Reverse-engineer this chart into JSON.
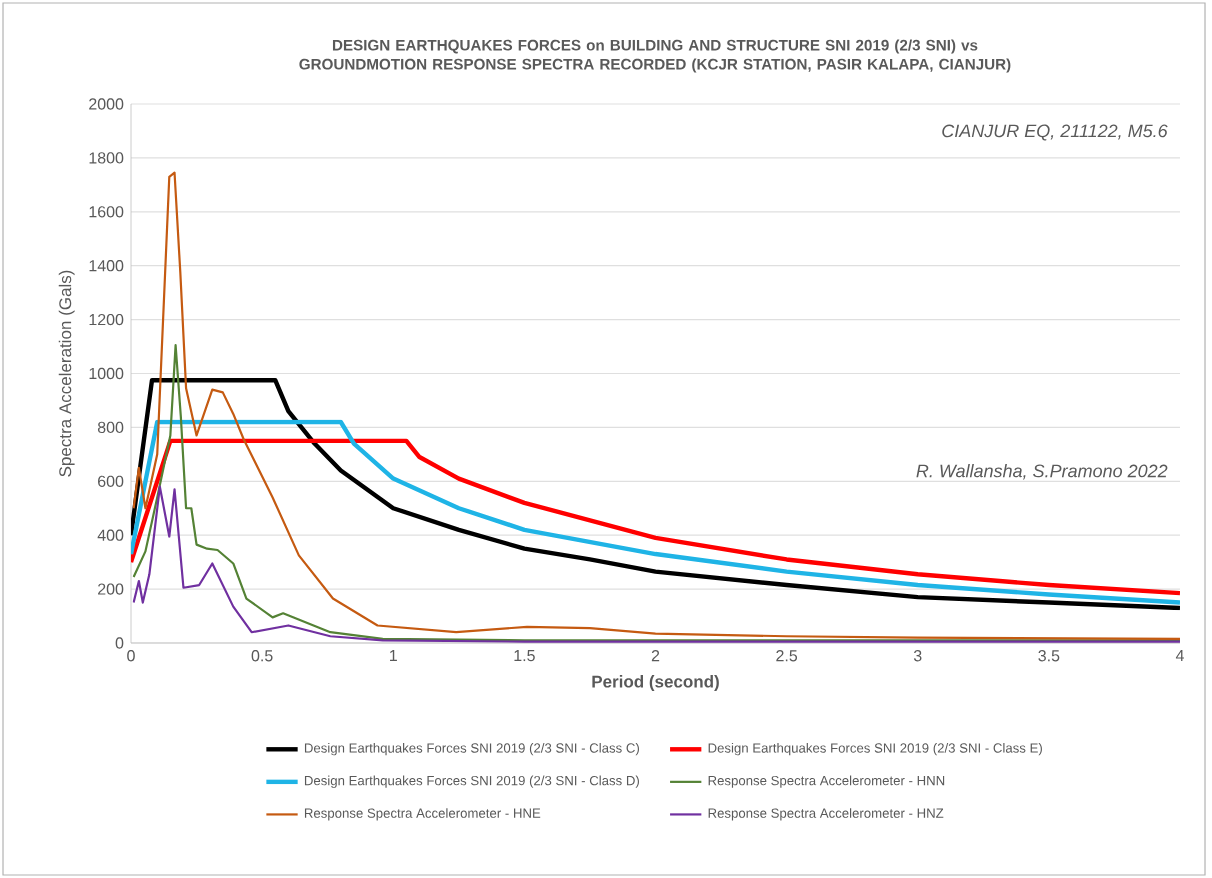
{
  "chart_data": {
    "type": "line",
    "title": "DESIGN EARTHQUAKES FORCES on BUILDING AND STRUCTURE SNI 2019 (2/3 SNI) vs\nGROUNDMOTION RESPONSE SPECTRA RECORDED (KCJR STATION, PASIR KALAPA, CIANJUR)",
    "xlabel": "Period (second)",
    "ylabel": "Spectra Acceleration (Gals)",
    "xlim": [
      0,
      4
    ],
    "xticks": [
      0,
      0.5,
      1,
      1.5,
      2,
      2.5,
      3,
      3.5,
      4
    ],
    "ylim": [
      0,
      2000
    ],
    "yticks": [
      0,
      200,
      400,
      600,
      800,
      1000,
      1200,
      1400,
      1600,
      1800,
      2000
    ],
    "grid": "y",
    "legend": "bottom",
    "annotations": [
      "CIANJUR EQ, 211122, M5.6",
      "R. Wallansha, S.Pramono 2022"
    ],
    "series": [
      {
        "name": "Design Earthquakes Forces SNI 2019 (2/3 SNI - Class C)",
        "color": "#000000",
        "x": [
          0,
          0.08,
          0.55,
          0.6,
          0.7,
          0.8,
          1,
          1.25,
          1.5,
          1.75,
          2,
          2.5,
          3,
          3.5,
          4
        ],
        "values": [
          400,
          975,
          975,
          860,
          740,
          640,
          500,
          420,
          350,
          310,
          265,
          215,
          170,
          150,
          130
        ]
      },
      {
        "name": "Design Earthquakes Forces SNI 2019 (2/3 SNI - Class E)",
        "color": "#ff0000",
        "x": [
          0,
          0.15,
          1.05,
          1.1,
          1.25,
          1.5,
          2,
          2.5,
          3,
          3.5,
          4
        ],
        "values": [
          300,
          750,
          750,
          690,
          610,
          520,
          390,
          310,
          255,
          215,
          185
        ]
      },
      {
        "name": "Design Earthquakes Forces SNI 2019 (2/3 SNI - Class D)",
        "color": "#1fb4e6",
        "x": [
          0,
          0.1,
          0.8,
          0.85,
          1,
          1.25,
          1.5,
          2,
          2.5,
          3,
          3.5,
          4
        ],
        "values": [
          330,
          820,
          820,
          740,
          610,
          500,
          420,
          330,
          265,
          215,
          180,
          150
        ]
      },
      {
        "name": "Response Spectra Accelerometer - HNN",
        "color": "#548235",
        "x": [
          0.01,
          0.055,
          0.1,
          0.15,
          0.17,
          0.19,
          0.21,
          0.23,
          0.25,
          0.29,
          0.33,
          0.39,
          0.44,
          0.54,
          0.58,
          0.76,
          0.96,
          1.5,
          2,
          3,
          4
        ],
        "values": [
          245,
          340,
          540,
          770,
          1105,
          840,
          500,
          500,
          365,
          350,
          345,
          295,
          165,
          95,
          110,
          40,
          15,
          10,
          10,
          10,
          10
        ]
      },
      {
        "name": "Response Spectra Accelerometer - HNE",
        "color": "#c55a11",
        "x": [
          0.01,
          0.03,
          0.055,
          0.1,
          0.146,
          0.166,
          0.188,
          0.21,
          0.25,
          0.31,
          0.35,
          0.39,
          0.43,
          0.54,
          0.64,
          0.77,
          0.94,
          1.24,
          1.51,
          1.75,
          2,
          2.5,
          3,
          4
        ],
        "values": [
          500,
          650,
          500,
          700,
          1730,
          1745,
          1375,
          945,
          770,
          940,
          930,
          850,
          755,
          540,
          325,
          165,
          65,
          40,
          60,
          55,
          35,
          25,
          20,
          15
        ]
      },
      {
        "name": "Response Spectra Accelerometer - HNZ",
        "color": "#7030a0",
        "x": [
          0.01,
          0.03,
          0.045,
          0.07,
          0.11,
          0.146,
          0.166,
          0.2,
          0.26,
          0.31,
          0.39,
          0.46,
          0.6,
          0.76,
          0.96,
          1.5,
          2,
          3,
          4
        ],
        "values": [
          150,
          230,
          150,
          255,
          580,
          395,
          570,
          205,
          215,
          295,
          135,
          40,
          65,
          25,
          10,
          5,
          5,
          5,
          5
        ]
      }
    ]
  }
}
